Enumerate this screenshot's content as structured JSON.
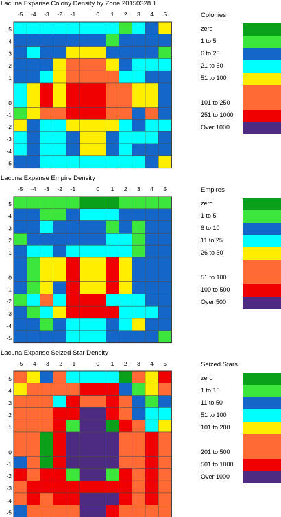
{
  "colors": {
    "dkgreen": "#0aa019",
    "ltgreen": "#3ce63c",
    "blue": "#1467c8",
    "cyan": "#00ffff",
    "yellow": "#ffee00",
    "orange": "#ff6a35",
    "red": "#f00000",
    "purple": "#4e2b82"
  },
  "chart_data": [
    {
      "type": "heatmap",
      "title": "Lacuna Expanse Colony Density by Zone 20150328.1",
      "x_ticks": [
        "-5",
        "-4",
        "-3",
        "-2",
        "-1",
        "0",
        "1",
        "2",
        "3",
        "4",
        "5"
      ],
      "y_ticks": [
        "5",
        "4",
        "3",
        "2",
        "1",
        "0",
        "-1",
        "-2",
        "-3",
        "-4",
        "-5"
      ],
      "legend_title": "Colonies",
      "legend": [
        {
          "label": "zero",
          "color": "dkgreen"
        },
        {
          "label": "1 to 5",
          "color": "ltgreen"
        },
        {
          "label": "6 to 20",
          "color": "blue"
        },
        {
          "label": "21 to 50",
          "color": "cyan"
        },
        {
          "label": "51 to 100",
          "color": "yellow"
        },
        {
          "label": "101 to 250",
          "color": "orange"
        },
        {
          "label": "251 to 1000",
          "color": "red"
        },
        {
          "label": "Over 1000",
          "color": "purple"
        }
      ],
      "cells": [
        [
          "cyan",
          "cyan",
          "cyan",
          "cyan",
          "cyan",
          "cyan",
          "cyan",
          "ltgreen",
          "cyan",
          "blue",
          "yellow"
        ],
        [
          "blue",
          "blue",
          "blue",
          "blue",
          "blue",
          "blue",
          "ltgreen",
          "blue",
          "blue",
          "blue",
          "blue"
        ],
        [
          "blue",
          "cyan",
          "blue",
          "blue",
          "yellow",
          "yellow",
          "blue",
          "blue",
          "blue",
          "blue",
          "ltgreen"
        ],
        [
          "blue",
          "blue",
          "blue",
          "yellow",
          "orange",
          "orange",
          "yellow",
          "blue",
          "cyan",
          "cyan",
          "cyan"
        ],
        [
          "blue",
          "blue",
          "cyan",
          "yellow",
          "orange",
          "orange",
          "orange",
          "cyan",
          "cyan",
          "blue",
          "blue"
        ],
        [
          "cyan",
          "yellow",
          "red",
          "yellow",
          "red",
          "red",
          "orange",
          "orange",
          "yellow",
          "yellow",
          "blue"
        ],
        [
          "ltgreen",
          "yellow",
          "orange",
          "orange",
          "red",
          "red",
          "orange",
          "orange",
          "blue",
          "orange",
          "blue"
        ],
        [
          "yellow",
          "blue",
          "cyan",
          "cyan",
          "yellow",
          "yellow",
          "yellow",
          "cyan",
          "blue",
          "cyan",
          "cyan"
        ],
        [
          "cyan",
          "blue",
          "cyan",
          "cyan",
          "blue",
          "yellow",
          "blue",
          "cyan",
          "cyan",
          "cyan",
          "blue"
        ],
        [
          "cyan",
          "blue",
          "cyan",
          "cyan",
          "blue",
          "yellow",
          "blue",
          "cyan",
          "blue",
          "blue",
          "blue"
        ],
        [
          "blue",
          "blue",
          "cyan",
          "cyan",
          "cyan",
          "cyan",
          "cyan",
          "cyan",
          "cyan",
          "blue",
          "yellow"
        ]
      ]
    },
    {
      "type": "heatmap",
      "title": "Lacuna Expanse Empire Density",
      "x_ticks": [
        "-5",
        "-4",
        "-3",
        "-2",
        "-1",
        "0",
        "1",
        "2",
        "3",
        "4",
        "5"
      ],
      "y_ticks": [
        "5",
        "4",
        "3",
        "2",
        "1",
        "0",
        "-1",
        "-2",
        "-3",
        "-4",
        "-5"
      ],
      "legend_title": "Empires",
      "legend": [
        {
          "label": "zero",
          "color": "dkgreen"
        },
        {
          "label": "1 to 5",
          "color": "ltgreen"
        },
        {
          "label": "6 to 10",
          "color": "blue"
        },
        {
          "label": "11 to 25",
          "color": "cyan"
        },
        {
          "label": "26 to 50",
          "color": "yellow"
        },
        {
          "label": "51 to 100",
          "color": "orange"
        },
        {
          "label": "100 to 500",
          "color": "red"
        },
        {
          "label": "Over 500",
          "color": "purple"
        }
      ],
      "cells": [
        [
          "ltgreen",
          "ltgreen",
          "ltgreen",
          "ltgreen",
          "ltgreen",
          "dkgreen",
          "dkgreen",
          "ltgreen",
          "ltgreen",
          "ltgreen",
          "ltgreen"
        ],
        [
          "blue",
          "blue",
          "ltgreen",
          "ltgreen",
          "blue",
          "cyan",
          "cyan",
          "blue",
          "blue",
          "blue",
          "blue"
        ],
        [
          "blue",
          "blue",
          "cyan",
          "blue",
          "blue",
          "blue",
          "ltgreen",
          "blue",
          "ltgreen",
          "blue",
          "blue"
        ],
        [
          "ltgreen",
          "blue",
          "blue",
          "blue",
          "blue",
          "blue",
          "cyan",
          "cyan",
          "ltgreen",
          "blue",
          "blue"
        ],
        [
          "blue",
          "cyan",
          "cyan",
          "blue",
          "cyan",
          "cyan",
          "cyan",
          "cyan",
          "ltgreen",
          "blue",
          "blue"
        ],
        [
          "blue",
          "ltgreen",
          "yellow",
          "yellow",
          "red",
          "yellow",
          "red",
          "yellow",
          "blue",
          "blue",
          "blue"
        ],
        [
          "blue",
          "ltgreen",
          "yellow",
          "blue",
          "red",
          "yellow",
          "red",
          "yellow",
          "blue",
          "blue",
          "blue"
        ],
        [
          "ltgreen",
          "cyan",
          "orange",
          "cyan",
          "red",
          "red",
          "cyan",
          "cyan",
          "cyan",
          "blue",
          "blue"
        ],
        [
          "blue",
          "ltgreen",
          "cyan",
          "yellow",
          "red",
          "red",
          "red",
          "cyan",
          "cyan",
          "cyan",
          "blue"
        ],
        [
          "blue",
          "blue",
          "ltgreen",
          "blue",
          "cyan",
          "cyan",
          "blue",
          "cyan",
          "yellow",
          "blue",
          "blue"
        ],
        [
          "blue",
          "blue",
          "blue",
          "blue",
          "cyan",
          "cyan",
          "blue",
          "blue",
          "blue",
          "blue",
          "ltgreen"
        ]
      ]
    },
    {
      "type": "heatmap",
      "title": "Lacuna Expanse Seized Star Density",
      "x_ticks": [
        "-5",
        "-4",
        "-3",
        "-2",
        "-1",
        "0",
        "1",
        "2",
        "3",
        "4",
        "5"
      ],
      "y_ticks": [
        "5",
        "4",
        "3",
        "2",
        "1",
        "0",
        "-1",
        "-2",
        "-3",
        "-4",
        "-5"
      ],
      "legend_title": "Seized Stars",
      "legend": [
        {
          "label": "zero",
          "color": "dkgreen"
        },
        {
          "label": "1 to 10",
          "color": "ltgreen"
        },
        {
          "label": "11 to 50",
          "color": "blue"
        },
        {
          "label": "51 to 100",
          "color": "cyan"
        },
        {
          "label": "101 to 200",
          "color": "yellow"
        },
        {
          "label": "201 to 500",
          "color": "orange"
        },
        {
          "label": "501 to 1000",
          "color": "red"
        },
        {
          "label": "Over 1000",
          "color": "purple"
        }
      ],
      "cells": [
        [
          "orange",
          "yellow",
          "blue",
          "orange",
          "cyan",
          "cyan",
          "cyan",
          "dkgreen",
          "orange",
          "yellow",
          "red"
        ],
        [
          "yellow",
          "orange",
          "orange",
          "orange",
          "orange",
          "red",
          "red",
          "blue",
          "ltgreen",
          "yellow",
          "orange"
        ],
        [
          "orange",
          "orange",
          "orange",
          "cyan",
          "red",
          "orange",
          "red",
          "orange",
          "blue",
          "ltgreen",
          "blue"
        ],
        [
          "orange",
          "orange",
          "orange",
          "red",
          "red",
          "purple",
          "red",
          "orange",
          "blue",
          "cyan",
          "cyan"
        ],
        [
          "orange",
          "orange",
          "orange",
          "red",
          "ltgreen",
          "purple",
          "dkgreen",
          "red",
          "orange",
          "cyan",
          "yellow"
        ],
        [
          "orange",
          "orange",
          "dkgreen",
          "red",
          "purple",
          "purple",
          "purple",
          "orange",
          "orange",
          "red",
          "orange"
        ],
        [
          "blue",
          "orange",
          "dkgreen",
          "red",
          "purple",
          "purple",
          "purple",
          "orange",
          "orange",
          "red",
          "orange"
        ],
        [
          "red",
          "orange",
          "red",
          "red",
          "ltgreen",
          "purple",
          "ltgreen",
          "red",
          "orange",
          "red",
          "orange"
        ],
        [
          "orange",
          "red",
          "red",
          "red",
          "red",
          "red",
          "red",
          "red",
          "orange",
          "red",
          "orange"
        ],
        [
          "orange",
          "red",
          "orange",
          "red",
          "red",
          "purple",
          "purple",
          "red",
          "orange",
          "red",
          "orange"
        ],
        [
          "blue",
          "orange",
          "orange",
          "orange",
          "orange",
          "purple",
          "red",
          "orange",
          "orange",
          "orange",
          "orange"
        ]
      ]
    }
  ]
}
